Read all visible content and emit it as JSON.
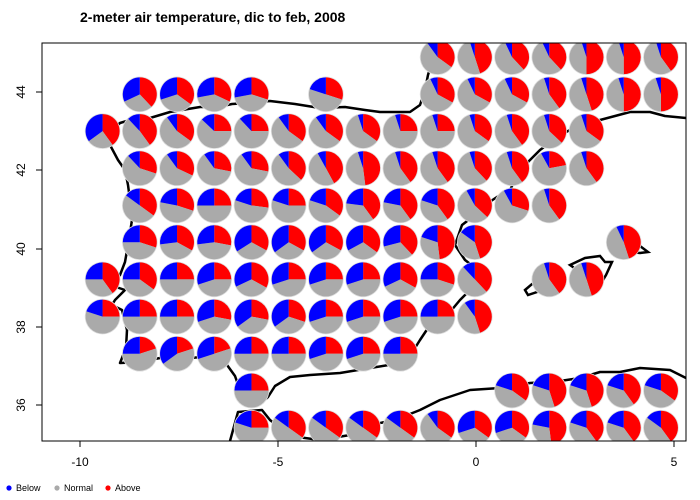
{
  "chart_data": {
    "type": "pie-map",
    "title": "2-meter air temperature, dic to feb, 2008",
    "xlabel": "",
    "ylabel": "",
    "xlim": [
      -10.9,
      5.3
    ],
    "ylim": [
      35.1,
      45.3
    ],
    "x_ticks": [
      "-10",
      "-5",
      "0",
      "5"
    ],
    "y_ticks": [
      "44",
      "42",
      "40",
      "38",
      "36"
    ],
    "grid": false,
    "legend_placement": "bottom-left",
    "legend": [
      {
        "label": "Below",
        "color": "#0000ff"
      },
      {
        "label": "Normal",
        "color": "#aaaaaa"
      },
      {
        "label": "Above",
        "color": "#ff0000"
      }
    ],
    "slice_order": "clockwise from top: Above, Normal, Below",
    "point_fields": [
      "lon",
      "lat",
      "below_pct",
      "normal_pct",
      "above_pct"
    ],
    "points": [
      [
        -0.97,
        44.89,
        10,
        55,
        35
      ],
      [
        -0.03,
        44.89,
        5,
        50,
        45
      ],
      [
        0.91,
        44.89,
        7,
        55,
        38
      ],
      [
        1.85,
        44.89,
        7,
        55,
        38
      ],
      [
        2.79,
        44.89,
        5,
        45,
        50
      ],
      [
        3.73,
        44.89,
        5,
        45,
        50
      ],
      [
        4.67,
        44.89,
        5,
        55,
        40
      ],
      [
        -8.49,
        43.94,
        32,
        30,
        38
      ],
      [
        -7.55,
        43.94,
        30,
        35,
        35
      ],
      [
        -6.61,
        43.94,
        28,
        40,
        32
      ],
      [
        -5.67,
        43.94,
        28,
        42,
        30
      ],
      [
        -3.79,
        43.94,
        20,
        50,
        30
      ],
      [
        -0.97,
        43.94,
        7,
        60,
        33
      ],
      [
        -0.03,
        43.94,
        7,
        60,
        33
      ],
      [
        0.91,
        43.94,
        7,
        60,
        33
      ],
      [
        1.85,
        43.94,
        5,
        55,
        40
      ],
      [
        2.79,
        43.94,
        5,
        50,
        45
      ],
      [
        3.73,
        43.94,
        5,
        45,
        50
      ],
      [
        4.67,
        43.94,
        5,
        45,
        50
      ],
      [
        -9.43,
        43.0,
        35,
        25,
        40
      ],
      [
        -8.49,
        43.0,
        12,
        48,
        40
      ],
      [
        -7.55,
        43.0,
        10,
        55,
        35
      ],
      [
        -6.61,
        43.0,
        13,
        62,
        25
      ],
      [
        -5.67,
        43.0,
        12,
        63,
        25
      ],
      [
        -4.73,
        43.0,
        10,
        55,
        35
      ],
      [
        -3.79,
        43.0,
        10,
        55,
        35
      ],
      [
        -2.85,
        43.0,
        5,
        60,
        35
      ],
      [
        -1.91,
        43.0,
        5,
        70,
        25
      ],
      [
        -0.97,
        43.0,
        5,
        70,
        25
      ],
      [
        -0.03,
        43.0,
        5,
        60,
        35
      ],
      [
        0.91,
        43.0,
        5,
        55,
        40
      ],
      [
        1.85,
        43.0,
        5,
        58,
        37
      ],
      [
        2.79,
        43.0,
        5,
        60,
        35
      ],
      [
        -8.49,
        42.05,
        12,
        58,
        30
      ],
      [
        -7.55,
        42.05,
        10,
        58,
        32
      ],
      [
        -6.61,
        42.05,
        10,
        62,
        28
      ],
      [
        -5.67,
        42.05,
        10,
        62,
        28
      ],
      [
        -4.73,
        42.05,
        10,
        53,
        37
      ],
      [
        -3.79,
        42.05,
        8,
        50,
        42
      ],
      [
        -2.85,
        42.05,
        5,
        47,
        48
      ],
      [
        -1.91,
        42.05,
        5,
        55,
        40
      ],
      [
        -0.97,
        42.05,
        5,
        55,
        40
      ],
      [
        -0.03,
        42.05,
        5,
        57,
        38
      ],
      [
        0.91,
        42.05,
        5,
        55,
        40
      ],
      [
        1.85,
        42.05,
        8,
        70,
        22
      ],
      [
        2.79,
        42.05,
        5,
        55,
        40
      ],
      [
        -8.49,
        41.1,
        15,
        50,
        35
      ],
      [
        -7.55,
        41.1,
        22,
        48,
        30
      ],
      [
        -6.61,
        41.1,
        25,
        50,
        25
      ],
      [
        -5.67,
        41.1,
        20,
        53,
        27
      ],
      [
        -4.73,
        41.1,
        20,
        55,
        25
      ],
      [
        -3.79,
        41.1,
        20,
        45,
        35
      ],
      [
        -2.85,
        41.1,
        23,
        37,
        40
      ],
      [
        -1.91,
        41.1,
        22,
        38,
        40
      ],
      [
        -0.97,
        41.1,
        20,
        40,
        40
      ],
      [
        -0.03,
        41.1,
        8,
        55,
        37
      ],
      [
        0.91,
        41.1,
        8,
        62,
        30
      ],
      [
        1.85,
        41.1,
        5,
        55,
        40
      ],
      [
        -8.49,
        40.16,
        25,
        45,
        30
      ],
      [
        -7.55,
        40.16,
        27,
        40,
        33
      ],
      [
        -6.61,
        40.16,
        27,
        45,
        28
      ],
      [
        -5.67,
        40.16,
        34,
        33,
        33
      ],
      [
        -4.73,
        40.16,
        35,
        32,
        33
      ],
      [
        -3.79,
        40.16,
        35,
        32,
        33
      ],
      [
        -2.85,
        40.16,
        33,
        32,
        35
      ],
      [
        -1.91,
        40.16,
        29,
        33,
        38
      ],
      [
        -0.97,
        40.16,
        20,
        32,
        48
      ],
      [
        -0.03,
        40.16,
        15,
        40,
        45
      ],
      [
        3.73,
        40.16,
        7,
        48,
        45
      ],
      [
        -9.43,
        39.21,
        25,
        35,
        40
      ],
      [
        -8.49,
        39.21,
        25,
        40,
        35
      ],
      [
        -7.55,
        39.21,
        25,
        50,
        25
      ],
      [
        -6.61,
        39.21,
        30,
        45,
        25
      ],
      [
        -5.67,
        39.21,
        32,
        35,
        33
      ],
      [
        -4.73,
        39.21,
        30,
        45,
        25
      ],
      [
        -3.79,
        39.21,
        30,
        45,
        25
      ],
      [
        -2.85,
        39.21,
        30,
        45,
        25
      ],
      [
        -1.91,
        39.21,
        32,
        35,
        33
      ],
      [
        -0.97,
        39.21,
        25,
        45,
        30
      ],
      [
        -0.03,
        39.21,
        12,
        50,
        38
      ],
      [
        1.85,
        39.21,
        5,
        55,
        40
      ],
      [
        2.79,
        39.21,
        5,
        50,
        45
      ],
      [
        -9.43,
        38.26,
        20,
        55,
        25
      ],
      [
        -8.49,
        38.26,
        25,
        50,
        25
      ],
      [
        -7.55,
        38.26,
        25,
        50,
        25
      ],
      [
        -6.61,
        38.26,
        30,
        42,
        28
      ],
      [
        -5.67,
        38.26,
        35,
        37,
        28
      ],
      [
        -4.73,
        38.26,
        35,
        35,
        30
      ],
      [
        -3.79,
        38.26,
        30,
        45,
        25
      ],
      [
        -2.85,
        38.26,
        30,
        45,
        25
      ],
      [
        -1.91,
        38.26,
        30,
        45,
        25
      ],
      [
        -0.97,
        38.26,
        25,
        50,
        25
      ],
      [
        -0.03,
        38.26,
        10,
        45,
        45
      ],
      [
        -8.49,
        37.31,
        25,
        55,
        20
      ],
      [
        -7.55,
        37.31,
        35,
        45,
        20
      ],
      [
        -6.61,
        37.31,
        30,
        50,
        20
      ],
      [
        -5.67,
        37.31,
        25,
        50,
        25
      ],
      [
        -4.73,
        37.31,
        25,
        50,
        25
      ],
      [
        -3.79,
        37.31,
        30,
        45,
        25
      ],
      [
        -2.85,
        37.31,
        30,
        45,
        25
      ],
      [
        -1.91,
        37.31,
        25,
        50,
        25
      ],
      [
        -5.67,
        36.37,
        25,
        50,
        25
      ],
      [
        0.91,
        36.37,
        20,
        45,
        35
      ],
      [
        1.85,
        36.37,
        20,
        35,
        45
      ],
      [
        2.79,
        36.37,
        20,
        35,
        45
      ],
      [
        3.73,
        36.37,
        20,
        40,
        40
      ],
      [
        4.67,
        36.37,
        20,
        45,
        35
      ],
      [
        -5.67,
        35.42,
        20,
        55,
        25
      ],
      [
        -4.73,
        35.42,
        15,
        50,
        35
      ],
      [
        -3.79,
        35.42,
        15,
        50,
        35
      ],
      [
        -2.85,
        35.42,
        15,
        50,
        35
      ],
      [
        -1.91,
        35.42,
        15,
        50,
        35
      ],
      [
        -0.97,
        35.42,
        10,
        55,
        35
      ],
      [
        -0.03,
        35.42,
        30,
        35,
        35
      ],
      [
        0.91,
        35.42,
        30,
        35,
        35
      ],
      [
        1.85,
        35.42,
        22,
        30,
        48
      ],
      [
        2.79,
        35.42,
        20,
        40,
        40
      ],
      [
        3.73,
        35.42,
        20,
        40,
        40
      ],
      [
        4.67,
        35.42,
        15,
        45,
        40
      ]
    ]
  }
}
